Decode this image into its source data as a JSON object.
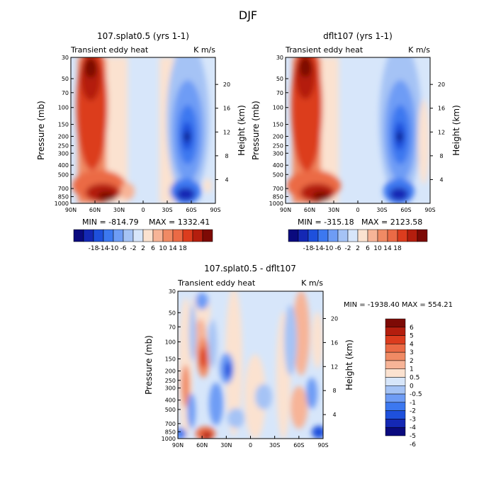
{
  "figure": {
    "title": "DJF"
  },
  "chart_data": [
    {
      "type": "heatmap",
      "panel": "top-left",
      "title": "107.splat0.5 (yrs 1-1)",
      "subtitle_left": "Transient eddy heat",
      "subtitle_right": "K m/s",
      "xlabel": "",
      "ylabel": "Pressure (mb)",
      "ylabel_right": "Height (km)",
      "x_ticks": [
        "90N",
        "60N",
        "30N",
        "0",
        "30S",
        "60S",
        "90S"
      ],
      "y_ticks": [
        "30",
        "50",
        "70",
        "100",
        "150",
        "200",
        "250",
        "300",
        "400",
        "500",
        "700",
        "850",
        "1000"
      ],
      "y_ticks_right": [
        "20",
        "16",
        "12",
        "8",
        "4"
      ],
      "min_label": "MIN = -814.79",
      "max_label": "MAX = 1332.41",
      "colorbar_labels": [
        "-18",
        "-14",
        "-10",
        "-6",
        "-2",
        "2",
        "6",
        "10",
        "14",
        "18"
      ]
    },
    {
      "type": "heatmap",
      "panel": "top-right",
      "title": "dflt107 (yrs 1-1)",
      "subtitle_left": "Transient eddy heat",
      "subtitle_right": "K m/s",
      "xlabel": "",
      "ylabel": "Pressure (mb)",
      "ylabel_right": "Height (km)",
      "x_ticks": [
        "90N",
        "60N",
        "30N",
        "0",
        "30S",
        "60S",
        "90S"
      ],
      "y_ticks": [
        "30",
        "50",
        "70",
        "100",
        "150",
        "200",
        "250",
        "300",
        "400",
        "500",
        "700",
        "850",
        "1000"
      ],
      "y_ticks_right": [
        "20",
        "16",
        "12",
        "8",
        "4"
      ],
      "min_label": "MIN = -315.18",
      "max_label": "MAX = 2123.58",
      "colorbar_labels": [
        "-18",
        "-14",
        "-10",
        "-6",
        "-2",
        "2",
        "6",
        "10",
        "14",
        "18"
      ]
    },
    {
      "type": "heatmap",
      "panel": "bottom",
      "title": "107.splat0.5 - dflt107",
      "subtitle_left": "Transient eddy heat",
      "subtitle_right": "K m/s",
      "xlabel": "",
      "ylabel": "Pressure (mb)",
      "ylabel_right": "Height (km)",
      "x_ticks": [
        "90N",
        "60N",
        "30N",
        "0",
        "30S",
        "60S",
        "90S"
      ],
      "y_ticks": [
        "30",
        "50",
        "70",
        "100",
        "150",
        "200",
        "250",
        "300",
        "400",
        "500",
        "700",
        "850",
        "1000"
      ],
      "y_ticks_right": [
        "20",
        "16",
        "12",
        "8",
        "4"
      ],
      "minmax_label": "MIN = -1938.40   MAX = 554.21",
      "colorbar_labels": [
        "6",
        "5",
        "4",
        "3",
        "2",
        "1",
        "0.5",
        "0",
        "-0.5",
        "-1",
        "-2",
        "-3",
        "-4",
        "-5",
        "-6"
      ]
    }
  ],
  "colors": {
    "main_scale": [
      "#0a0a7e",
      "#1428b4",
      "#1e50dc",
      "#3c78f0",
      "#6e9cf5",
      "#a5c3f5",
      "#d7e6fa",
      "#fbe2d0",
      "#f7b497",
      "#f08a64",
      "#eb6a45",
      "#dc3c1e",
      "#b41e0e",
      "#7d0a05"
    ],
    "diff_scale": [
      "#7d0a05",
      "#b41e0e",
      "#dc3c1e",
      "#eb6a45",
      "#f08a64",
      "#f7b497",
      "#fbe2d0",
      "#d7e6fa",
      "#a5c3f5",
      "#6e9cf5",
      "#3c78f0",
      "#1e50dc",
      "#1428b4",
      "#0a0a7e"
    ]
  }
}
